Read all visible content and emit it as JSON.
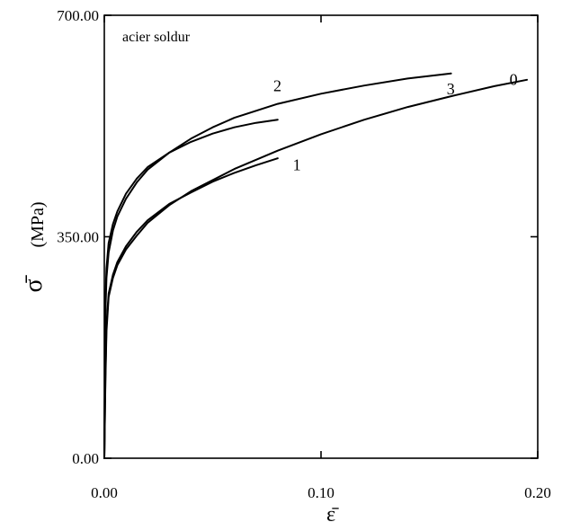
{
  "chart_data": {
    "type": "line",
    "annotation": "acier soldur",
    "xlabel": "ε̄",
    "ylabel_symbol": "σ̄",
    "ylabel_unit": "(MPa)",
    "xlim": [
      0.0,
      0.2
    ],
    "ylim": [
      0.0,
      700.0
    ],
    "x_ticks": [
      {
        "value": 0.0,
        "label": "0.00"
      },
      {
        "value": 0.1,
        "label": "0.10"
      },
      {
        "value": 0.2,
        "label": "0.20"
      }
    ],
    "y_ticks": [
      {
        "value": 0.0,
        "label": "0.00"
      },
      {
        "value": 350.0,
        "label": "350.00"
      },
      {
        "value": 700.0,
        "label": "700.00"
      }
    ],
    "grid": false,
    "legend": "none",
    "series": [
      {
        "name": "0",
        "label_at": [
          0.187,
          590
        ],
        "x": [
          0.0,
          0.0005,
          0.001,
          0.002,
          0.004,
          0.006,
          0.01,
          0.015,
          0.02,
          0.03,
          0.04,
          0.06,
          0.08,
          0.1,
          0.12,
          0.14,
          0.16,
          0.18,
          0.195
        ],
        "y": [
          0,
          120,
          200,
          255,
          285,
          305,
          330,
          352,
          372,
          400,
          422,
          457,
          486,
          512,
          535,
          555,
          572,
          588,
          598
        ]
      },
      {
        "name": "1",
        "label_at": [
          0.087,
          455
        ],
        "x": [
          0.0,
          0.0005,
          0.001,
          0.002,
          0.004,
          0.006,
          0.01,
          0.015,
          0.02,
          0.03,
          0.04,
          0.05,
          0.06,
          0.07,
          0.08
        ],
        "y": [
          0,
          130,
          210,
          260,
          290,
          310,
          335,
          358,
          376,
          402,
          420,
          437,
          451,
          463,
          474
        ]
      },
      {
        "name": "2",
        "label_at": [
          0.078,
          580
        ],
        "x": [
          0.0,
          0.0005,
          0.001,
          0.002,
          0.004,
          0.006,
          0.01,
          0.015,
          0.02,
          0.03,
          0.04,
          0.05,
          0.06,
          0.07,
          0.08
        ],
        "y": [
          0,
          250,
          300,
          340,
          370,
          390,
          418,
          442,
          460,
          483,
          500,
          513,
          523,
          530,
          535
        ]
      },
      {
        "name": "3",
        "label_at": [
          0.158,
          575
        ],
        "x": [
          0.0,
          0.0005,
          0.001,
          0.002,
          0.004,
          0.006,
          0.01,
          0.015,
          0.02,
          0.03,
          0.04,
          0.05,
          0.06,
          0.08,
          0.1,
          0.12,
          0.14,
          0.16
        ],
        "y": [
          0,
          230,
          285,
          325,
          360,
          382,
          410,
          436,
          456,
          483,
          505,
          523,
          538,
          560,
          576,
          589,
          600,
          608
        ]
      }
    ]
  }
}
